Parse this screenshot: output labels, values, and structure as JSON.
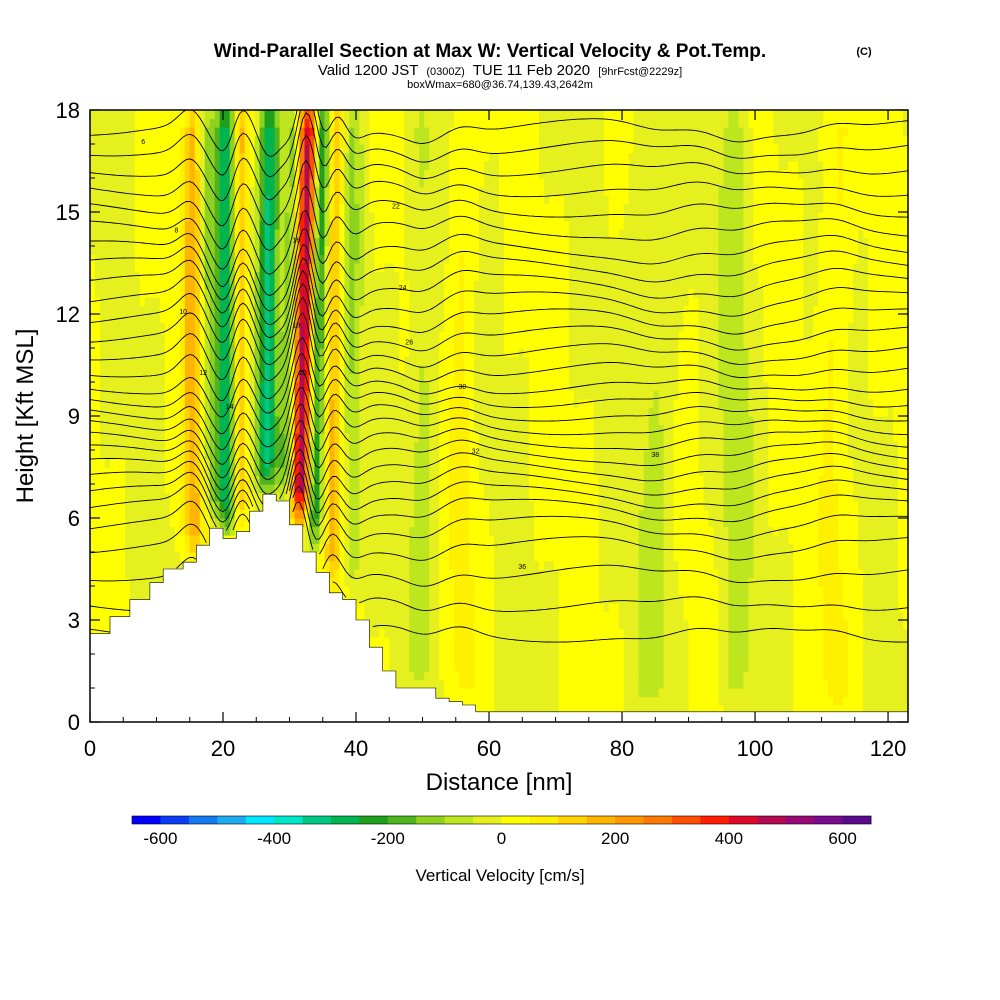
{
  "chart_data": {
    "type": "heatmap",
    "title": "Wind-Parallel Section at Max W: Vertical Velocity & Pot.Temp.",
    "title_mark": "(C)",
    "subtitle_parts": [
      "Valid 1200 JST",
      "(0300Z)",
      "TUE 11 Feb 2020",
      "[9hrFcst@2229z]"
    ],
    "subtitle2": "boxWmax=680@36.74,139.43,2642m",
    "xlabel": "Distance [nm]",
    "ylabel": "Height [Kft MSL]",
    "xlim": [
      0,
      123
    ],
    "ylim": [
      0,
      18
    ],
    "xticks": [
      "0",
      "20",
      "40",
      "60",
      "80",
      "100",
      "120"
    ],
    "xtick_values": [
      0,
      20,
      40,
      60,
      80,
      100,
      120
    ],
    "yticks": [
      "0",
      "3",
      "6",
      "9",
      "12",
      "15",
      "18"
    ],
    "ytick_values": [
      0,
      3,
      6,
      9,
      12,
      15,
      18
    ],
    "colorbar": {
      "label": "Vertical Velocity [cm/s]",
      "ticks": [
        "-600",
        "-400",
        "-200",
        "0",
        "200",
        "400",
        "600"
      ],
      "tick_values": [
        -600,
        -400,
        -200,
        0,
        200,
        400,
        600
      ],
      "range": [
        -650,
        650
      ],
      "colors": [
        "#0000ff",
        "#0a3cf5",
        "#1478f0",
        "#1eaaf0",
        "#00e6ff",
        "#00e6c8",
        "#00c882",
        "#00b450",
        "#1ea01e",
        "#50b41e",
        "#8cd21e",
        "#bee61e",
        "#e6f01e",
        "#ffff00",
        "#fff000",
        "#ffd200",
        "#ffb400",
        "#ff9600",
        "#ff7800",
        "#ff5000",
        "#ff1e00",
        "#dc0a28",
        "#b40a50",
        "#960a78",
        "#780a8c",
        "#5a0a8c"
      ]
    },
    "terrain_profile": [
      {
        "x": 0,
        "h": 2.6
      },
      {
        "x": 3,
        "h": 3.1
      },
      {
        "x": 6,
        "h": 3.6
      },
      {
        "x": 9,
        "h": 4.1
      },
      {
        "x": 11,
        "h": 4.5
      },
      {
        "x": 14,
        "h": 4.7
      },
      {
        "x": 16,
        "h": 5.2
      },
      {
        "x": 18,
        "h": 5.7
      },
      {
        "x": 20,
        "h": 5.4
      },
      {
        "x": 22,
        "h": 5.6
      },
      {
        "x": 24,
        "h": 6.2
      },
      {
        "x": 26,
        "h": 6.7
      },
      {
        "x": 28,
        "h": 6.5
      },
      {
        "x": 30,
        "h": 5.8
      },
      {
        "x": 32,
        "h": 5.0
      },
      {
        "x": 34,
        "h": 4.4
      },
      {
        "x": 36,
        "h": 3.8
      },
      {
        "x": 38,
        "h": 3.6
      },
      {
        "x": 40,
        "h": 3.0
      },
      {
        "x": 42,
        "h": 2.2
      },
      {
        "x": 44,
        "h": 1.5
      },
      {
        "x": 46,
        "h": 1.0
      },
      {
        "x": 48,
        "h": 1.0
      },
      {
        "x": 50,
        "h": 1.0
      },
      {
        "x": 52,
        "h": 0.7
      },
      {
        "x": 54,
        "h": 0.6
      },
      {
        "x": 56,
        "h": 0.5
      },
      {
        "x": 58,
        "h": 0.3
      },
      {
        "x": 123,
        "h": 0.3
      }
    ],
    "velocity_features": [
      {
        "x": 15.5,
        "width": 1.6,
        "w": 180,
        "tilt": 0.0
      },
      {
        "x": 18.5,
        "width": 1.6,
        "w": -120,
        "tilt": -0.1
      },
      {
        "x": 20.5,
        "width": 1.4,
        "w": -280,
        "tilt": 0.0
      },
      {
        "x": 22.5,
        "width": 1.2,
        "w": 180,
        "tilt": 0.0
      },
      {
        "x": 26.5,
        "width": 1.5,
        "w": -320,
        "tilt": 0.05
      },
      {
        "x": 29.2,
        "width": 1.0,
        "w": -150,
        "tilt": 0.1
      },
      {
        "x": 31.5,
        "width": 1.3,
        "w": 470,
        "tilt": 0.12
      },
      {
        "x": 33.8,
        "width": 1.1,
        "w": -250,
        "tilt": 0.1
      },
      {
        "x": 36.5,
        "width": 1.2,
        "w": 160,
        "tilt": 0.05
      },
      {
        "x": 39.5,
        "width": 1.4,
        "w": -90,
        "tilt": 0.0
      },
      {
        "x": 50.0,
        "width": 2.0,
        "w": -70,
        "tilt": 0.0
      },
      {
        "x": 56.0,
        "width": 2.0,
        "w": 60,
        "tilt": 0.0
      },
      {
        "x": 85.0,
        "width": 3.0,
        "w": -60,
        "tilt": 0.0
      },
      {
        "x": 97.0,
        "width": 2.5,
        "w": -70,
        "tilt": 0.0
      },
      {
        "x": 112.0,
        "width": 2.5,
        "w": 60,
        "tilt": 0.0
      }
    ],
    "isentropes": {
      "levels_kft": [
        2.6,
        3.5,
        4.4,
        5.2,
        5.8,
        6.3,
        6.7,
        7.1,
        7.5,
        7.9,
        8.3,
        8.7,
        9.1,
        9.5,
        9.9,
        10.4,
        10.9,
        11.4,
        11.9,
        12.4,
        12.9,
        13.4,
        13.9,
        14.5,
        15.1,
        15.7,
        16.3,
        16.9,
        17.5
      ],
      "labels": [
        "6",
        "8",
        "10",
        "12",
        "14",
        "16",
        "18",
        "20",
        "22",
        "24",
        "26",
        "30",
        "32",
        "36",
        "38"
      ]
    }
  }
}
